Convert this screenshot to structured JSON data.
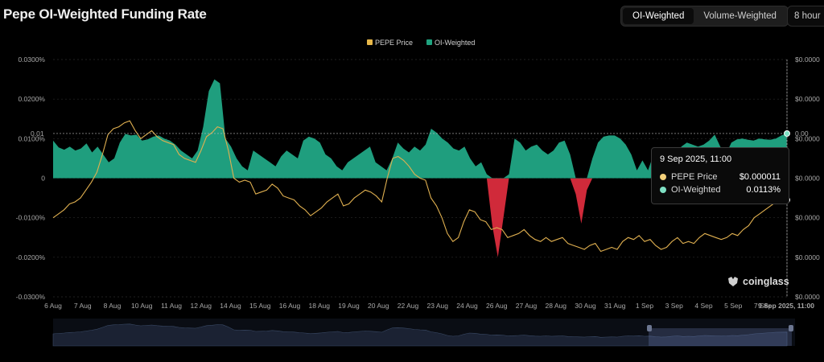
{
  "header": {
    "title": "Pepe OI-Weighted Funding Rate",
    "toggle": [
      "OI-Weighted",
      "Volume-Weighted"
    ],
    "active_toggle": 0,
    "interval": "8 hour"
  },
  "legend": [
    {
      "name": "PEPE Price",
      "color": "#e8b84a"
    },
    {
      "name": "OI-Weighted",
      "color": "#1fa37f"
    }
  ],
  "tooltip": {
    "title": "9 Sep 2025, 11:00",
    "rows": [
      {
        "name": "PEPE Price",
        "value": "$0.000011",
        "color": "#f3d07a"
      },
      {
        "name": "OI-Weighted",
        "value": "0.0113%",
        "color": "#7fe0c4"
      }
    ]
  },
  "crosshair": {
    "left_label": "0.01",
    "right_label": "0.00"
  },
  "brand": "coinglass",
  "colors": {
    "positive": "#1f9e7e",
    "negative": "#d02a3a",
    "price_line": "#e0b050",
    "grid": "#2a2a2a",
    "navigator": "#1b2233"
  },
  "chart_data": {
    "type": "area",
    "title": "Pepe OI-Weighted Funding Rate",
    "left_axis": {
      "ticks": [
        "0.0300%",
        "0.0200%",
        "0.0100%",
        "0",
        "-0.0100%",
        "-0.0200%",
        "-0.0300%"
      ],
      "ylim": [
        -0.03,
        0.03
      ],
      "unit": "%"
    },
    "right_axis": {
      "ticks": [
        "$0.0000",
        "$0.0000",
        "$0.0000",
        "$0.0000",
        "$0.0000",
        "$0.0000",
        "$0.0000"
      ]
    },
    "x_ticks": [
      "6 Aug",
      "7 Aug",
      "8 Aug",
      "10 Aug",
      "11 Aug",
      "12 Aug",
      "14 Aug",
      "15 Aug",
      "16 Aug",
      "18 Aug",
      "19 Aug",
      "20 Aug",
      "22 Aug",
      "23 Aug",
      "24 Aug",
      "26 Aug",
      "27 Aug",
      "28 Aug",
      "30 Aug",
      "31 Aug",
      "1 Sep",
      "3 Sep",
      "4 Sep",
      "5 Sep",
      "7 Sep",
      "9 Sep 2025, 11:00"
    ],
    "series": [
      {
        "name": "OI-Weighted",
        "values": [
          0.0095,
          0.0078,
          0.0072,
          0.008,
          0.007,
          0.0075,
          0.0088,
          0.0065,
          0.008,
          0.006,
          0.004,
          0.005,
          0.009,
          0.0112,
          0.0108,
          0.011,
          0.0095,
          0.0098,
          0.0105,
          0.0108,
          0.01,
          0.0095,
          0.0085,
          0.007,
          0.006,
          0.005,
          0.007,
          0.013,
          0.022,
          0.025,
          0.024,
          0.01,
          0.008,
          0.005,
          0.003,
          0.002,
          0.007,
          0.006,
          0.005,
          0.004,
          0.003,
          0.0055,
          0.007,
          0.006,
          0.005,
          0.0095,
          0.0105,
          0.01,
          0.009,
          0.006,
          0.005,
          0.003,
          0.002,
          0.004,
          0.005,
          0.006,
          0.007,
          0.008,
          0.004,
          0.003,
          0.002,
          0.005,
          0.009,
          0.0075,
          0.0065,
          0.008,
          0.007,
          0.0085,
          0.0125,
          0.0115,
          0.01,
          0.009,
          0.0075,
          0.007,
          0.008,
          0.005,
          0.003,
          0.004,
          0.001,
          -0.012,
          -0.02,
          -0.01,
          0.001,
          0.01,
          0.009,
          0.007,
          0.008,
          0.0085,
          0.007,
          0.006,
          0.007,
          0.009,
          0.0095,
          0.006,
          -0.004,
          -0.0115,
          -0.003,
          0.005,
          0.009,
          0.0105,
          0.0108,
          0.0108,
          0.01,
          0.0085,
          0.006,
          0.002,
          0.0045,
          0.002,
          0.006,
          0.007,
          0.004,
          0.005,
          0.0045,
          0.008,
          0.009,
          0.0085,
          0.008,
          0.0085,
          0.0095,
          0.011,
          0.008,
          0.006,
          0.009,
          0.0098,
          0.01,
          0.0097,
          0.0095,
          0.01,
          0.0098,
          0.0097,
          0.01,
          0.0108,
          0.0113
        ]
      },
      {
        "name": "PEPE Price",
        "values": [
          -0.01,
          -0.009,
          -0.008,
          -0.0065,
          -0.006,
          -0.005,
          -0.003,
          -0.001,
          0.0015,
          0.006,
          0.011,
          0.0125,
          0.013,
          0.014,
          0.0145,
          0.012,
          0.01,
          0.011,
          0.012,
          0.0105,
          0.0095,
          0.009,
          0.0085,
          0.006,
          0.005,
          0.0045,
          0.004,
          0.007,
          0.0105,
          0.0115,
          0.013,
          0.0125,
          0.007,
          0.0,
          -0.001,
          -0.0005,
          -0.001,
          -0.004,
          -0.0035,
          -0.003,
          -0.0015,
          -0.0025,
          -0.0045,
          -0.005,
          -0.0055,
          -0.007,
          -0.008,
          -0.0095,
          -0.0085,
          -0.0075,
          -0.006,
          -0.005,
          -0.004,
          -0.007,
          -0.0065,
          -0.005,
          -0.004,
          -0.003,
          -0.0035,
          -0.0045,
          -0.006,
          0.0,
          0.005,
          0.0055,
          0.0045,
          0.003,
          0.001,
          0.0,
          -0.0005,
          -0.005,
          -0.007,
          -0.01,
          -0.014,
          -0.016,
          -0.015,
          -0.011,
          -0.008,
          -0.0085,
          -0.0105,
          -0.011,
          -0.013,
          -0.0125,
          -0.013,
          -0.015,
          -0.0145,
          -0.014,
          -0.013,
          -0.0145,
          -0.0155,
          -0.016,
          -0.015,
          -0.016,
          -0.0155,
          -0.015,
          -0.0165,
          -0.017,
          -0.0175,
          -0.018,
          -0.017,
          -0.0165,
          -0.0185,
          -0.018,
          -0.0175,
          -0.018,
          -0.016,
          -0.015,
          -0.0155,
          -0.0145,
          -0.016,
          -0.0155,
          -0.017,
          -0.018,
          -0.0175,
          -0.016,
          -0.015,
          -0.0165,
          -0.016,
          -0.0165,
          -0.015,
          -0.014,
          -0.0145,
          -0.015,
          -0.0155,
          -0.015,
          -0.014,
          -0.0145,
          -0.013,
          -0.012,
          -0.01,
          -0.009,
          -0.008,
          -0.007,
          -0.006,
          -0.0058,
          -0.0055
        ]
      }
    ]
  }
}
